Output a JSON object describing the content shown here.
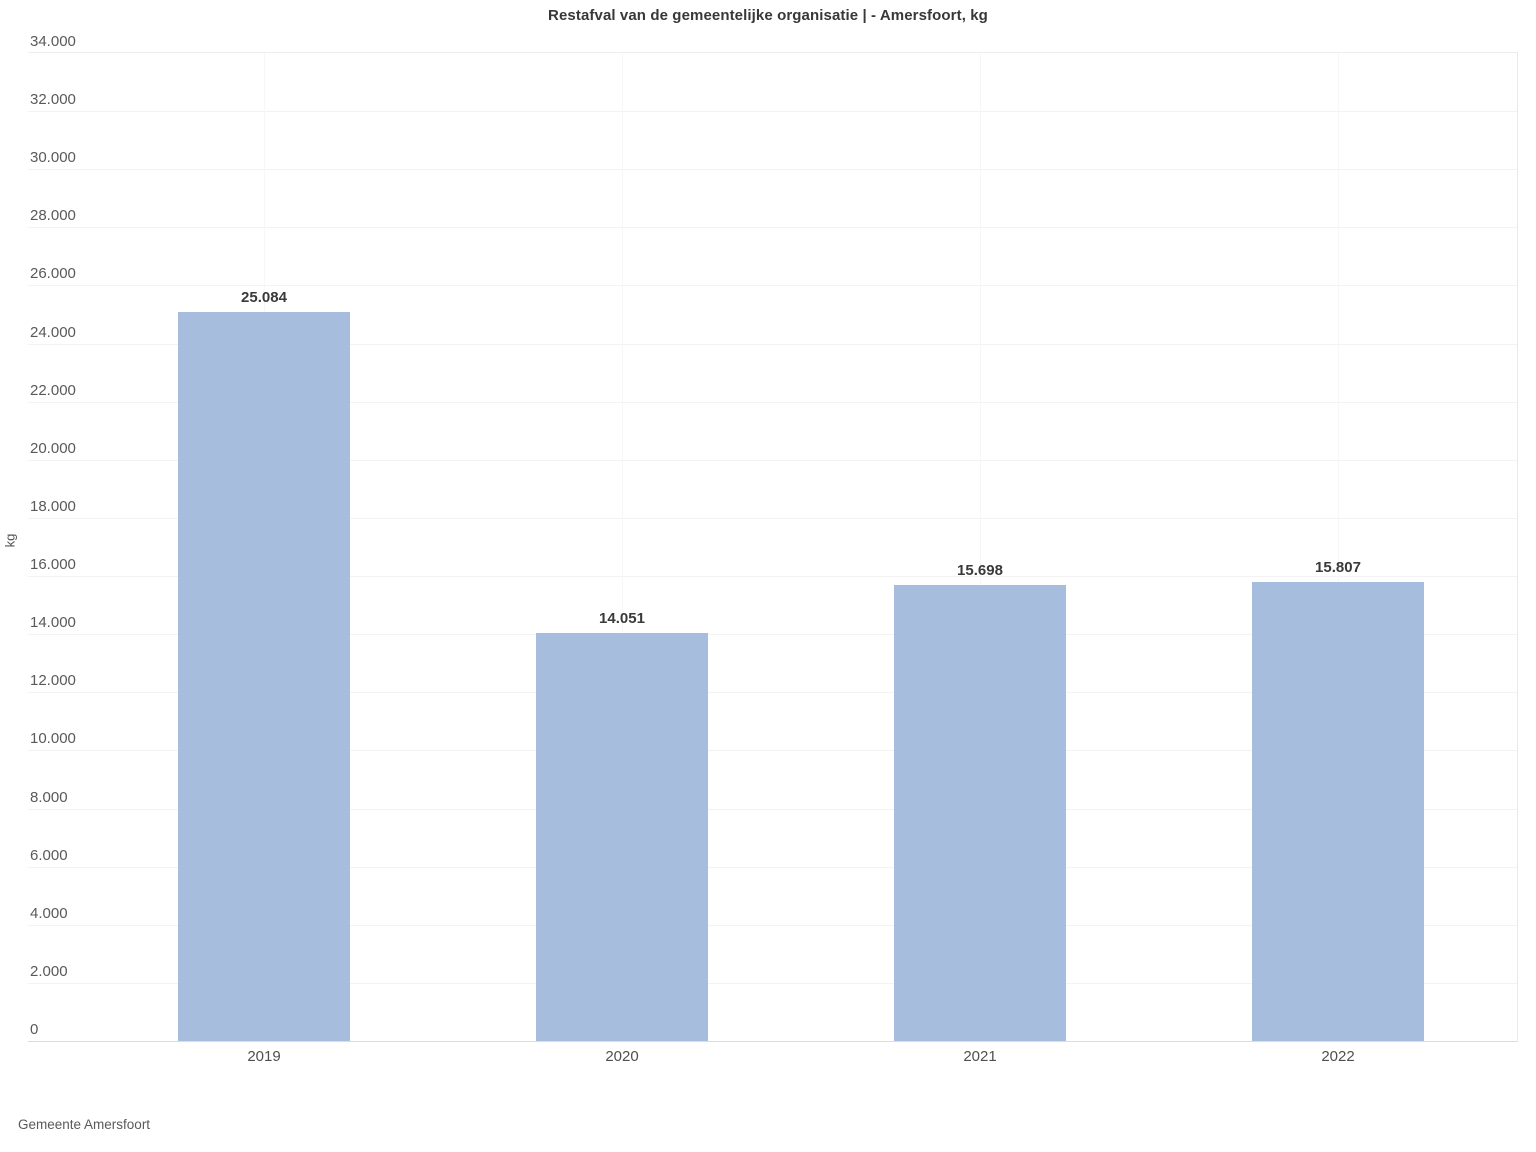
{
  "title": "Restafval van de gemeentelijke organisatie | - Amersfoort, kg",
  "source": "Gemeente Amersfoort",
  "colors": {
    "bar": "#a7bddd",
    "title_text": "#383838",
    "tick_text": "#595959",
    "value_label_text": "#3a3a3a",
    "grid": "#f3f3f3",
    "vertical_grid": "#f7f7f7",
    "axis_line": "#dcdcdc",
    "source_text": "#5a5a5a"
  },
  "chart_data": {
    "type": "bar",
    "title": "Restafval van de gemeentelijke organisatie | - Amersfoort, kg",
    "categories": [
      "2019",
      "2020",
      "2021",
      "2022"
    ],
    "values": [
      25084,
      14051,
      15698,
      15807
    ],
    "value_labels": [
      "25.084",
      "14.051",
      "15.698",
      "15.807"
    ],
    "xlabel": "",
    "ylabel": "kg",
    "ylim": [
      0,
      34000
    ],
    "ytick_interval": 2000,
    "yticks": [
      0,
      2000,
      4000,
      6000,
      8000,
      10000,
      12000,
      14000,
      16000,
      18000,
      20000,
      22000,
      24000,
      26000,
      28000,
      30000,
      32000,
      34000
    ],
    "ytick_labels": [
      "0",
      "2.000",
      "4.000",
      "6.000",
      "8.000",
      "10.000",
      "12.000",
      "14.000",
      "16.000",
      "18.000",
      "20.000",
      "22.000",
      "24.000",
      "26.000",
      "28.000",
      "30.000",
      "32.000",
      "34.000"
    ],
    "grid": true,
    "legend": false,
    "bar_color": "#a7bddd"
  }
}
